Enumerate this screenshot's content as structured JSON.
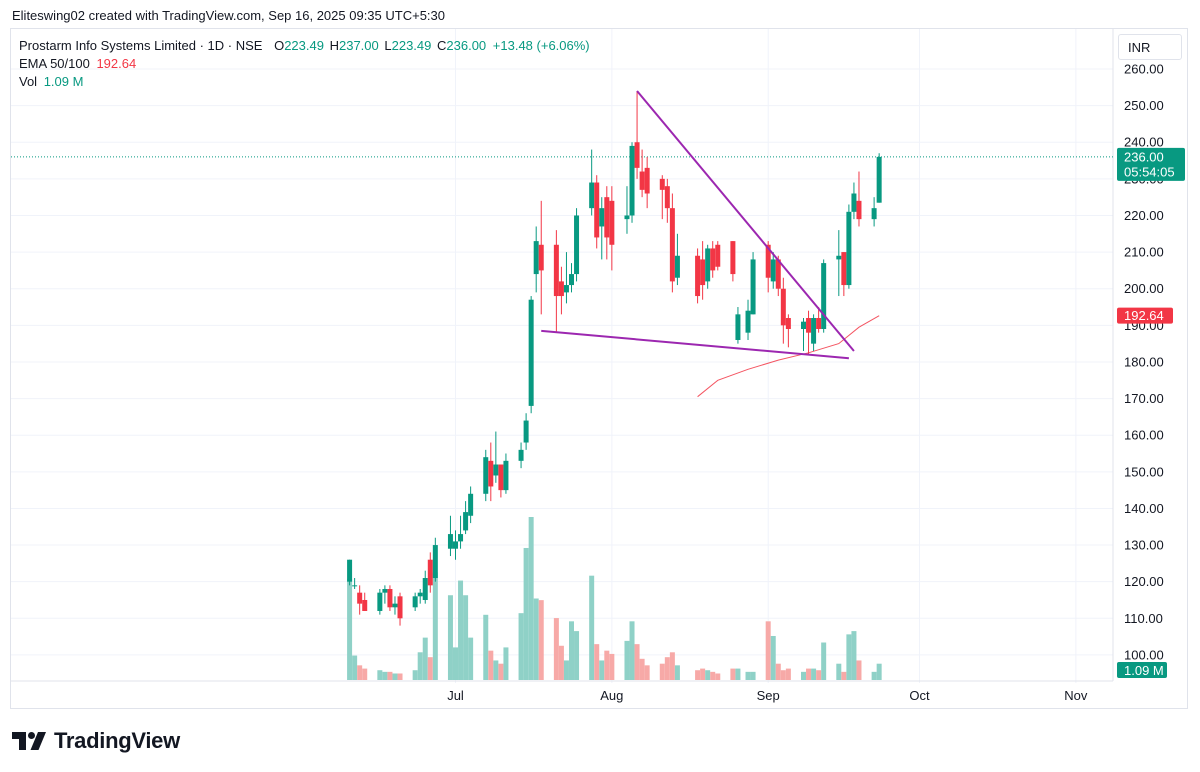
{
  "header": {
    "attribution": "Eliteswing02 created with TradingView.com, Sep 16, 2025 09:35 UTC+5:30"
  },
  "legend": {
    "symbol": "Prostarm Info Systems Limited · 1D · NSE",
    "o_label": "O",
    "o_value": "223.49",
    "h_label": "H",
    "h_value": "237.00",
    "l_label": "L",
    "l_value": "223.49",
    "c_label": "C",
    "c_value": "236.00",
    "change": "+13.48 (+6.06%)",
    "ema_label": "EMA 50/100",
    "ema_value": "192.64",
    "vol_label": "Vol",
    "vol_value": "1.09 M"
  },
  "currency": "INR",
  "price_badge": {
    "price": "236.00",
    "countdown": "05:54:05"
  },
  "ema_badge": "192.64",
  "vol_badge": "1.09 M",
  "brand": {
    "name": "TradingView"
  },
  "colors": {
    "up": "#089981",
    "down": "#f23645",
    "up_vol": "#8fd1c7",
    "down_vol": "#f7a9a7",
    "pattern": "#9c27b0",
    "ema": "#f23645"
  },
  "chart_data": {
    "type": "candlestick",
    "x_ticks": [
      "Jul",
      "Aug",
      "Sep",
      "Oct",
      "Nov"
    ],
    "y_ticks": [
      "100.00",
      "110.00",
      "120.00",
      "130.00",
      "140.00",
      "150.00",
      "160.00",
      "170.00",
      "180.00",
      "190.00",
      "200.00",
      "210.00",
      "220.00",
      "230.00",
      "240.00",
      "250.00",
      "260.00"
    ],
    "ylim": [
      94,
      265
    ],
    "candles": [
      {
        "d": "2025-06-10",
        "o": 120,
        "h": 126,
        "l": 119,
        "c": 126
      },
      {
        "d": "2025-06-11",
        "o": 119,
        "h": 121,
        "l": 118,
        "c": 119
      },
      {
        "d": "2025-06-12",
        "o": 117,
        "h": 119,
        "l": 111,
        "c": 114
      },
      {
        "d": "2025-06-13",
        "o": 115,
        "h": 117,
        "l": 112,
        "c": 112
      },
      {
        "d": "2025-06-16",
        "o": 112,
        "h": 118,
        "l": 111,
        "c": 117
      },
      {
        "d": "2025-06-17",
        "o": 117,
        "h": 119,
        "l": 114,
        "c": 118
      },
      {
        "d": "2025-06-18",
        "o": 118,
        "h": 119,
        "l": 112,
        "c": 113
      },
      {
        "d": "2025-06-19",
        "o": 113,
        "h": 116,
        "l": 111,
        "c": 114
      },
      {
        "d": "2025-06-20",
        "o": 116,
        "h": 117,
        "l": 108,
        "c": 110
      },
      {
        "d": "2025-06-23",
        "o": 113,
        "h": 117,
        "l": 112,
        "c": 116
      },
      {
        "d": "2025-06-24",
        "o": 116,
        "h": 118,
        "l": 114,
        "c": 117
      },
      {
        "d": "2025-06-25",
        "o": 115,
        "h": 123,
        "l": 114,
        "c": 121
      },
      {
        "d": "2025-06-26",
        "o": 126,
        "h": 128,
        "l": 117,
        "c": 119
      },
      {
        "d": "2025-06-27",
        "o": 121,
        "h": 132,
        "l": 120,
        "c": 130
      },
      {
        "d": "2025-06-30",
        "o": 129,
        "h": 138,
        "l": 127,
        "c": 133
      },
      {
        "d": "2025-07-01",
        "o": 129,
        "h": 134,
        "l": 126,
        "c": 131
      },
      {
        "d": "2025-07-02",
        "o": 131,
        "h": 138,
        "l": 129,
        "c": 133
      },
      {
        "d": "2025-07-03",
        "o": 134,
        "h": 142,
        "l": 133,
        "c": 139
      },
      {
        "d": "2025-07-04",
        "o": 138,
        "h": 146,
        "l": 136,
        "c": 144
      },
      {
        "d": "2025-07-07",
        "o": 144,
        "h": 156,
        "l": 142,
        "c": 154
      },
      {
        "d": "2025-07-08",
        "o": 153,
        "h": 158,
        "l": 142,
        "c": 146
      },
      {
        "d": "2025-07-09",
        "o": 149,
        "h": 161,
        "l": 147,
        "c": 152
      },
      {
        "d": "2025-07-10",
        "o": 152,
        "h": 152,
        "l": 143,
        "c": 145
      },
      {
        "d": "2025-07-11",
        "o": 145,
        "h": 155,
        "l": 144,
        "c": 153
      },
      {
        "d": "2025-07-14",
        "o": 153,
        "h": 158,
        "l": 151,
        "c": 156
      },
      {
        "d": "2025-07-15",
        "o": 158,
        "h": 166,
        "l": 156,
        "c": 164
      },
      {
        "d": "2025-07-16",
        "o": 168,
        "h": 198,
        "l": 166,
        "c": 197
      },
      {
        "d": "2025-07-17",
        "o": 204,
        "h": 217,
        "l": 199,
        "c": 213
      },
      {
        "d": "2025-07-18",
        "o": 212,
        "h": 224,
        "l": 193,
        "c": 205
      },
      {
        "d": "2025-07-21",
        "o": 212,
        "h": 216,
        "l": 188,
        "c": 198
      },
      {
        "d": "2025-07-22",
        "o": 202,
        "h": 206,
        "l": 193,
        "c": 198
      },
      {
        "d": "2025-07-23",
        "o": 199,
        "h": 210,
        "l": 196,
        "c": 201
      },
      {
        "d": "2025-07-24",
        "o": 201,
        "h": 207,
        "l": 199,
        "c": 204
      },
      {
        "d": "2025-07-25",
        "o": 204,
        "h": 222,
        "l": 202,
        "c": 220
      },
      {
        "d": "2025-07-28",
        "o": 222,
        "h": 238,
        "l": 220,
        "c": 229
      },
      {
        "d": "2025-07-29",
        "o": 229,
        "h": 231,
        "l": 211,
        "c": 214
      },
      {
        "d": "2025-07-30",
        "o": 217,
        "h": 225,
        "l": 208,
        "c": 222
      },
      {
        "d": "2025-07-31",
        "o": 225,
        "h": 228,
        "l": 208,
        "c": 214
      },
      {
        "d": "2025-08-01",
        "o": 224,
        "h": 228,
        "l": 205,
        "c": 212
      },
      {
        "d": "2025-08-04",
        "o": 219,
        "h": 228,
        "l": 215,
        "c": 220
      },
      {
        "d": "2025-08-05",
        "o": 220,
        "h": 240,
        "l": 218,
        "c": 239
      },
      {
        "d": "2025-08-06",
        "o": 240,
        "h": 254,
        "l": 230,
        "c": 233
      },
      {
        "d": "2025-08-07",
        "o": 232,
        "h": 238,
        "l": 225,
        "c": 227
      },
      {
        "d": "2025-08-08",
        "o": 233,
        "h": 236,
        "l": 222,
        "c": 226
      },
      {
        "d": "2025-08-11",
        "o": 230,
        "h": 231,
        "l": 219,
        "c": 227
      },
      {
        "d": "2025-08-12",
        "o": 228,
        "h": 230,
        "l": 218,
        "c": 222
      },
      {
        "d": "2025-08-13",
        "o": 222,
        "h": 226,
        "l": 199,
        "c": 202
      },
      {
        "d": "2025-08-14",
        "o": 203,
        "h": 215,
        "l": 201,
        "c": 209
      },
      {
        "d": "2025-08-18",
        "o": 209,
        "h": 211,
        "l": 196,
        "c": 198
      },
      {
        "d": "2025-08-19",
        "o": 208,
        "h": 213,
        "l": 197,
        "c": 201
      },
      {
        "d": "2025-08-20",
        "o": 202,
        "h": 212,
        "l": 200,
        "c": 211
      },
      {
        "d": "2025-08-21",
        "o": 211,
        "h": 213,
        "l": 203,
        "c": 205
      },
      {
        "d": "2025-08-22",
        "o": 212,
        "h": 213,
        "l": 205,
        "c": 206
      },
      {
        "d": "2025-08-25",
        "o": 213,
        "h": 213,
        "l": 202,
        "c": 204
      },
      {
        "d": "2025-08-26",
        "o": 186,
        "h": 195,
        "l": 185,
        "c": 193
      },
      {
        "d": "2025-08-28",
        "o": 188,
        "h": 197,
        "l": 186,
        "c": 194
      },
      {
        "d": "2025-08-29",
        "o": 193,
        "h": 210,
        "l": 193,
        "c": 208
      },
      {
        "d": "2025-09-01",
        "o": 212,
        "h": 213,
        "l": 199,
        "c": 203
      },
      {
        "d": "2025-09-02",
        "o": 202,
        "h": 210,
        "l": 200,
        "c": 208
      },
      {
        "d": "2025-09-03",
        "o": 208,
        "h": 209,
        "l": 198,
        "c": 200
      },
      {
        "d": "2025-09-04",
        "o": 200,
        "h": 203,
        "l": 185,
        "c": 190
      },
      {
        "d": "2025-09-05",
        "o": 192,
        "h": 193,
        "l": 184,
        "c": 189
      },
      {
        "d": "2025-09-08",
        "o": 189,
        "h": 192,
        "l": 183,
        "c": 191
      },
      {
        "d": "2025-09-09",
        "o": 192,
        "h": 194,
        "l": 182,
        "c": 188
      },
      {
        "d": "2025-09-10",
        "o": 185,
        "h": 193,
        "l": 183,
        "c": 192
      },
      {
        "d": "2025-09-11",
        "o": 192,
        "h": 195,
        "l": 188,
        "c": 189
      },
      {
        "d": "2025-09-12",
        "o": 189,
        "h": 208,
        "l": 188,
        "c": 207
      },
      {
        "d": "2025-09-15",
        "o": 208,
        "h": 216,
        "l": 198,
        "c": 209
      },
      {
        "d": "2025-09-16",
        "o": 210,
        "h": 210,
        "l": 198,
        "c": 201
      },
      {
        "d": "2025-09-17",
        "o": 201,
        "h": 223,
        "l": 200,
        "c": 221
      },
      {
        "d": "2025-09-18",
        "o": 221,
        "h": 229,
        "l": 219,
        "c": 226
      },
      {
        "d": "2025-09-19",
        "o": 224,
        "h": 232,
        "l": 217,
        "c": 219
      },
      {
        "d": "2025-09-22",
        "o": 219,
        "h": 225,
        "l": 217,
        "c": 222
      },
      {
        "d": "2025-09-23",
        "o": 223.49,
        "h": 237,
        "l": 223.49,
        "c": 236
      }
    ],
    "volume_relative": [
      0.62,
      0.15,
      0.09,
      0.07,
      0.06,
      0.05,
      0.05,
      0.04,
      0.04,
      0.06,
      0.17,
      0.26,
      0.14,
      0.66,
      0.52,
      0.2,
      0.61,
      0.52,
      0.26,
      0.4,
      0.18,
      0.12,
      0.1,
      0.2,
      0.41,
      0.81,
      1.0,
      0.5,
      0.49,
      0.38,
      0.21,
      0.12,
      0.36,
      0.3,
      0.64,
      0.22,
      0.12,
      0.18,
      0.16,
      0.24,
      0.36,
      0.22,
      0.13,
      0.09,
      0.1,
      0.14,
      0.17,
      0.09,
      0.06,
      0.07,
      0.06,
      0.05,
      0.04,
      0.07,
      0.07,
      0.05,
      0.05,
      0.36,
      0.27,
      0.1,
      0.06,
      0.07,
      0.05,
      0.07,
      0.07,
      0.06,
      0.23,
      0.1,
      0.05,
      0.28,
      0.3,
      0.12,
      0.05,
      0.1
    ],
    "ema_series": [
      {
        "d": "2025-08-18",
        "v": 170.5
      },
      {
        "d": "2025-08-22",
        "v": 175
      },
      {
        "d": "2025-08-28",
        "v": 178
      },
      {
        "d": "2025-09-03",
        "v": 180.5
      },
      {
        "d": "2025-09-09",
        "v": 182.5
      },
      {
        "d": "2025-09-15",
        "v": 185
      },
      {
        "d": "2025-09-19",
        "v": 189.5
      },
      {
        "d": "2025-09-23",
        "v": 192.64
      }
    ],
    "pattern_lines": [
      {
        "from": {
          "d": "2025-08-06",
          "v": 254
        },
        "to": {
          "d": "2025-09-18",
          "v": 183
        }
      },
      {
        "from": {
          "d": "2025-07-18",
          "v": 188.5
        },
        "to": {
          "d": "2025-09-17",
          "v": 181
        }
      }
    ],
    "last_price": 236.0
  }
}
